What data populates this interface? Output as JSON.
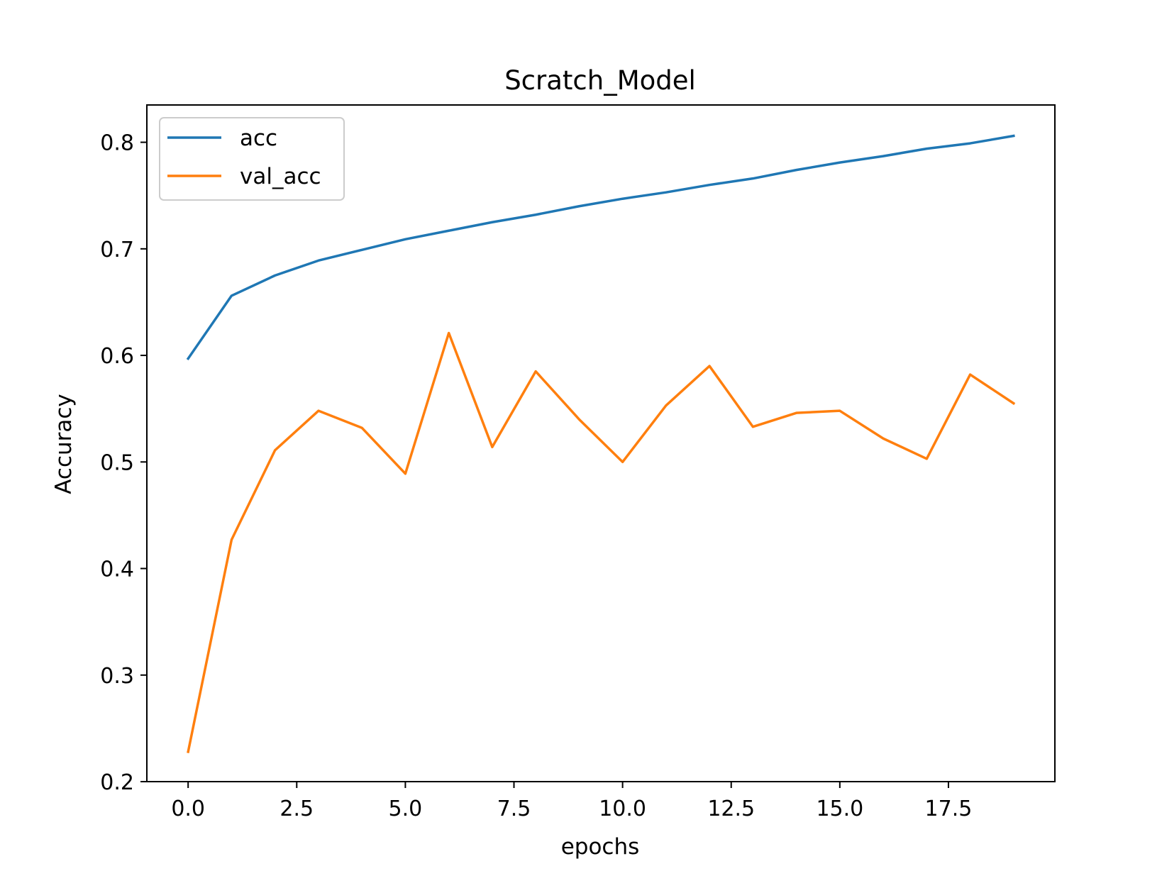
{
  "chart_data": {
    "type": "line",
    "title": "Scratch_Model",
    "xlabel": "epochs",
    "ylabel": "Accuracy",
    "xlim": [
      -0.95,
      19.95
    ],
    "ylim": [
      0.2,
      0.835
    ],
    "xticks": [
      0.0,
      2.5,
      5.0,
      7.5,
      10.0,
      12.5,
      15.0,
      17.5
    ],
    "xtick_labels": [
      "0.0",
      "2.5",
      "5.0",
      "7.5",
      "10.0",
      "12.5",
      "15.0",
      "17.5"
    ],
    "yticks": [
      0.2,
      0.3,
      0.4,
      0.5,
      0.6,
      0.7,
      0.8
    ],
    "ytick_labels": [
      "0.2",
      "0.3",
      "0.4",
      "0.5",
      "0.6",
      "0.7",
      "0.8"
    ],
    "grid": false,
    "legend_position": "top-left",
    "x": [
      0,
      1,
      2,
      3,
      4,
      5,
      6,
      7,
      8,
      9,
      10,
      11,
      12,
      13,
      14,
      15,
      16,
      17,
      18,
      19
    ],
    "series": [
      {
        "name": "acc",
        "color": "#1f77b4",
        "values": [
          0.597,
          0.656,
          0.675,
          0.689,
          0.699,
          0.709,
          0.717,
          0.725,
          0.732,
          0.74,
          0.747,
          0.753,
          0.76,
          0.766,
          0.774,
          0.781,
          0.787,
          0.794,
          0.799,
          0.806
        ]
      },
      {
        "name": "val_acc",
        "color": "#ff7f0e",
        "values": [
          0.228,
          0.427,
          0.511,
          0.548,
          0.532,
          0.489,
          0.621,
          0.514,
          0.585,
          0.54,
          0.5,
          0.553,
          0.59,
          0.533,
          0.546,
          0.548,
          0.522,
          0.503,
          0.582,
          0.555
        ]
      }
    ]
  }
}
